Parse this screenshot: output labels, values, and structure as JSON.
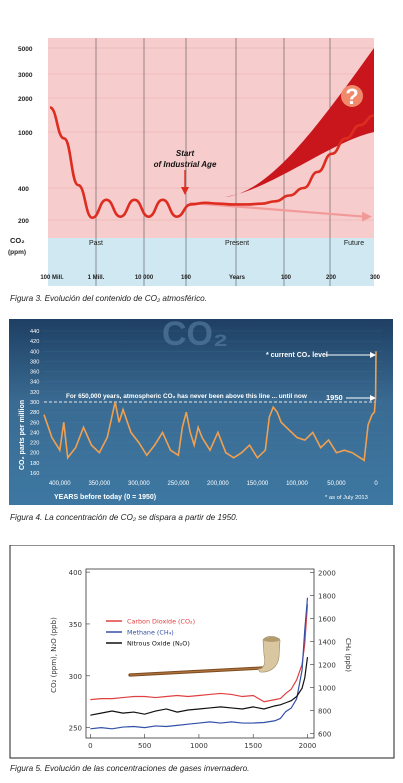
{
  "figures": [
    {
      "caption": "Figura 3. Evolución del contenido de CO₂ atmosférico."
    },
    {
      "caption": "Figura 4. La concentración de CO₂ se dispara a partir de 1950."
    },
    {
      "caption": "Figura 5. Evolución de las concentraciones de gases invernadero."
    }
  ],
  "chart_data": [
    {
      "type": "line",
      "y_tick_labels": [
        "5000",
        "3000",
        "2000",
        "1000",
        "400",
        "200"
      ],
      "ylabel": "CO₂ (ppm)",
      "x_tick_labels": [
        "100 Mill.",
        "1 Mill.",
        "10 000",
        "100",
        "Years",
        "100",
        "200",
        "300"
      ],
      "section_labels": [
        "Past",
        "Present",
        "Future"
      ],
      "annotation": "Start of Industrial Age",
      "question_mark": "?",
      "colors": {
        "upper_band": "#f6cccc",
        "lower_band": "#cfe8f2",
        "line": "#de2c20",
        "future_band": "#c8161c"
      },
      "series": [
        {
          "name": "",
          "values_ppm": [
            1650,
            900,
            420,
            210,
            310,
            215,
            310,
            215,
            310,
            215,
            280,
            290,
            285,
            280,
            280,
            285,
            300,
            340,
            400,
            520,
            700,
            900,
            1150,
            1400
          ]
        }
      ]
    },
    {
      "type": "line",
      "title": "CO₂",
      "ylabel": "CO₂ parts per million",
      "y_ticks": [
        160,
        180,
        200,
        220,
        240,
        260,
        280,
        300,
        320,
        340,
        360,
        380,
        400,
        420,
        440
      ],
      "x_tick_labels": [
        "400,000",
        "350,000",
        "300,000",
        "250,000",
        "200,000",
        "150,000",
        "100,000",
        "50,000",
        "0"
      ],
      "xlabel": "YEARS before today (0 = 1950)",
      "annotation_main": "For 650,000 years, atmospheric CO₂ has never been above this line ... until now",
      "threshold_line_value": 300,
      "current_level_label": "* current CO₂ level",
      "label_1950": "1950",
      "footnote": "* as of July 2013",
      "colors": {
        "line": "#f0a050",
        "background": "#2f5f88"
      },
      "series": [
        {
          "name": "",
          "points": [
            [
              420000,
              275
            ],
            [
              410000,
              230
            ],
            [
              400000,
              205
            ],
            [
              395000,
              260
            ],
            [
              390000,
              190
            ],
            [
              380000,
              210
            ],
            [
              370000,
              250
            ],
            [
              360000,
              215
            ],
            [
              350000,
              200
            ],
            [
              340000,
              230
            ],
            [
              330000,
              300
            ],
            [
              325000,
              260
            ],
            [
              320000,
              285
            ],
            [
              310000,
              240
            ],
            [
              300000,
              220
            ],
            [
              290000,
              195
            ],
            [
              280000,
              215
            ],
            [
              270000,
              240
            ],
            [
              260000,
              205
            ],
            [
              250000,
              195
            ],
            [
              245000,
              250
            ],
            [
              240000,
              280
            ],
            [
              235000,
              240
            ],
            [
              230000,
              215
            ],
            [
              225000,
              250
            ],
            [
              220000,
              230
            ],
            [
              210000,
              205
            ],
            [
              200000,
              240
            ],
            [
              190000,
              200
            ],
            [
              180000,
              190
            ],
            [
              170000,
              200
            ],
            [
              160000,
              215
            ],
            [
              150000,
              190
            ],
            [
              140000,
              205
            ],
            [
              135000,
              270
            ],
            [
              130000,
              290
            ],
            [
              125000,
              280
            ],
            [
              120000,
              260
            ],
            [
              110000,
              245
            ],
            [
              100000,
              230
            ],
            [
              90000,
              225
            ],
            [
              80000,
              240
            ],
            [
              70000,
              210
            ],
            [
              60000,
              225
            ],
            [
              50000,
              200
            ],
            [
              40000,
              205
            ],
            [
              30000,
              200
            ],
            [
              20000,
              190
            ],
            [
              15000,
              185
            ],
            [
              10000,
              255
            ],
            [
              5000,
              275
            ],
            [
              2000,
              280
            ],
            [
              500,
              310
            ],
            [
              0,
              400
            ]
          ]
        }
      ]
    },
    {
      "type": "line",
      "y_ticks_left": [
        250,
        300,
        350,
        400
      ],
      "ylabel_left": "CO₂ (ppm), N₂O (ppb)",
      "y_ticks_right": [
        600,
        800,
        1000,
        1200,
        1400,
        1600,
        1800,
        2000
      ],
      "ylabel_right": "CH₄ (ppb)",
      "x_ticks": [
        0,
        500,
        1000,
        1500,
        2000
      ],
      "legend": [
        "Carbon Dioxide (CO₂)",
        "Methane (CH₄)",
        "Nitrous Oxide (N₂O)"
      ],
      "colors": {
        "co2": "#e04040",
        "ch4": "#3350a8",
        "n2o": "#111111"
      },
      "series": [
        {
          "name": "Carbon Dioxide (CO₂)",
          "x": [
            0,
            100,
            200,
            300,
            400,
            500,
            600,
            700,
            800,
            900,
            1000,
            1100,
            1200,
            1300,
            1400,
            1500,
            1600,
            1700,
            1750,
            1800,
            1850,
            1900,
            1950,
            1975,
            2000
          ],
          "y": [
            277,
            278,
            278,
            279,
            280,
            280,
            279,
            280,
            281,
            280,
            281,
            282,
            283,
            282,
            280,
            281,
            275,
            277,
            278,
            283,
            287,
            296,
            311,
            331,
            369
          ]
        },
        {
          "name": "Methane (CH₄)",
          "x": [
            0,
            100,
            200,
            300,
            400,
            500,
            600,
            700,
            800,
            900,
            1000,
            1100,
            1200,
            1300,
            1400,
            1500,
            1600,
            1700,
            1750,
            1800,
            1850,
            1900,
            1950,
            1975,
            2000
          ],
          "y": [
            640,
            650,
            640,
            655,
            660,
            650,
            665,
            660,
            670,
            680,
            690,
            700,
            690,
            700,
            690,
            690,
            695,
            710,
            730,
            790,
            820,
            900,
            1150,
            1500,
            1780
          ]
        },
        {
          "name": "Nitrous Oxide (N₂O)",
          "x": [
            0,
            100,
            200,
            300,
            400,
            500,
            600,
            700,
            800,
            900,
            1000,
            1100,
            1200,
            1300,
            1400,
            1500,
            1600,
            1700,
            1750,
            1800,
            1850,
            1900,
            1950,
            1975,
            2000
          ],
          "y": [
            262,
            264,
            266,
            264,
            265,
            263,
            266,
            268,
            265,
            267,
            268,
            269,
            270,
            269,
            268,
            270,
            268,
            271,
            272,
            274,
            276,
            280,
            288,
            298,
            318
          ]
        }
      ]
    }
  ]
}
